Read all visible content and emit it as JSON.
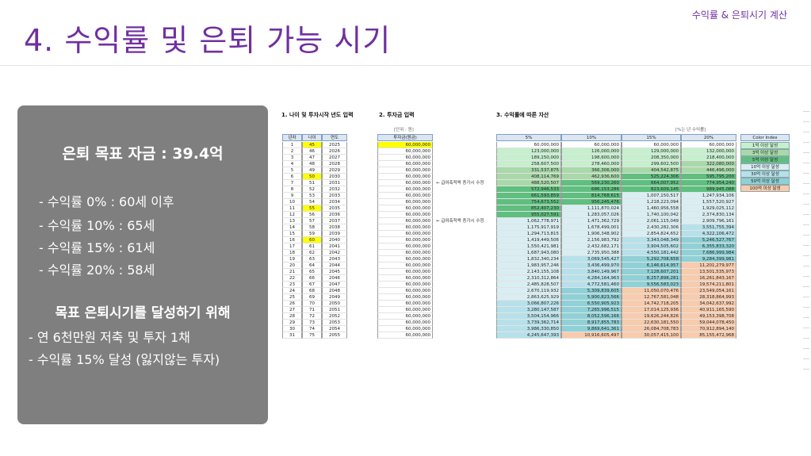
{
  "header": {
    "title": "4. 수익률 및 은퇴 가능 시기",
    "tag": "수익률 & 은퇴시기 계산"
  },
  "summary": {
    "goal": "은퇴 목표 자금 : 39.4억",
    "rates": [
      "- 수익률    0% : 60세 이후",
      "- 수익률 10% : 65세",
      "- 수익률 15% : 61세",
      "- 수익률 20% : 58세"
    ],
    "heading": "목표 은퇴시기를 달성하기 위해",
    "plans": [
      "- 연 6천만원 저축 및 투자 1채",
      "- 수익률 15% 달성 (잃지않는 투자)"
    ]
  },
  "sheet": {
    "sections": [
      "1. 나이 및 투자시작 년도 입력",
      "2. 투자금 입력",
      "3. 수익률에 따른 자산"
    ],
    "unit_left": "[단위 : 원]",
    "unit_right": "[%는 년 수익률]",
    "headers": {
      "year_no": "년차",
      "age": "나이",
      "year": "연도",
      "invest": "투자금(원금)",
      "r5": "5%",
      "r10": "10%",
      "r15": "15%",
      "r20": "20%",
      "color_index": "Color Index"
    },
    "notes": [
      "← 급여축적액 증가시 수정",
      "← 급여축적액 증가시 수정"
    ],
    "legend": [
      {
        "label": "1억 이상 달성",
        "color": "#c6efce"
      },
      {
        "label": "3억 이상 달성",
        "color": "#a9d9a9"
      },
      {
        "label": "5억 이상 달성",
        "color": "#5fbf7f"
      },
      {
        "label": "10억 이상 달성",
        "color": "#d9eef2"
      },
      {
        "label": "30억 이상 달성",
        "color": "#b7e1ea"
      },
      {
        "label": "50억 이상 달성",
        "color": "#8fd1d6"
      },
      {
        "label": "100억 이상 달성",
        "color": "#f8cbad"
      }
    ],
    "rows": [
      [
        "1",
        "45",
        "2025",
        "60,000,000",
        "60,000,000",
        "60,000,000",
        "60,000,000",
        "60,000,000"
      ],
      [
        "2",
        "46",
        "2026",
        "60,000,000",
        "123,000,000",
        "126,000,000",
        "129,000,000",
        "132,000,000"
      ],
      [
        "3",
        "47",
        "2027",
        "60,000,000",
        "189,150,000",
        "198,600,000",
        "208,350,000",
        "218,400,000"
      ],
      [
        "4",
        "48",
        "2028",
        "60,000,000",
        "258,607,500",
        "278,460,000",
        "299,602,500",
        "322,080,000"
      ],
      [
        "5",
        "49",
        "2029",
        "60,000,000",
        "331,537,875",
        "366,306,000",
        "404,542,875",
        "446,496,000"
      ],
      [
        "6",
        "50",
        "2030",
        "60,000,000",
        "408,114,769",
        "462,936,600",
        "525,224,306",
        "595,795,200"
      ],
      [
        "7",
        "51",
        "2031",
        "60,000,000",
        "488,520,507",
        "569,230,260",
        "664,007,952",
        "774,954,240"
      ],
      [
        "8",
        "52",
        "2032",
        "60,000,000",
        "572,946,533",
        "686,153,286",
        "823,609,145",
        "989,945,088"
      ],
      [
        "9",
        "53",
        "2033",
        "60,000,000",
        "661,593,859",
        "814,768,615",
        "1,007,150,517",
        "1,247,934,106"
      ],
      [
        "10",
        "54",
        "2034",
        "60,000,000",
        "754,673,552",
        "956,245,476",
        "1,218,223,094",
        "1,557,520,927"
      ],
      [
        "11",
        "55",
        "2035",
        "60,000,000",
        "852,407,230",
        "1,111,870,024",
        "1,460,956,558",
        "1,929,025,112"
      ],
      [
        "12",
        "56",
        "2036",
        "60,000,000",
        "955,027,591",
        "1,283,057,026",
        "1,740,100,042",
        "2,374,830,134"
      ],
      [
        "13",
        "57",
        "2037",
        "60,000,000",
        "1,062,778,971",
        "1,471,362,729",
        "2,061,115,049",
        "2,909,796,161"
      ],
      [
        "14",
        "58",
        "2038",
        "60,000,000",
        "1,175,917,919",
        "1,678,499,001",
        "2,430,282,306",
        "3,551,755,394"
      ],
      [
        "15",
        "59",
        "2039",
        "60,000,000",
        "1,294,713,815",
        "1,906,348,902",
        "2,854,824,652",
        "4,322,106,472"
      ],
      [
        "16",
        "60",
        "2040",
        "60,000,000",
        "1,419,449,506",
        "2,156,983,792",
        "3,343,048,349",
        "5,246,527,767"
      ],
      [
        "17",
        "61",
        "2041",
        "60,000,000",
        "1,550,421,981",
        "2,432,682,171",
        "3,904,505,602",
        "6,355,833,320"
      ],
      [
        "18",
        "62",
        "2042",
        "60,000,000",
        "1,687,943,080",
        "2,735,950,388",
        "4,550,181,442",
        "7,686,999,984"
      ],
      [
        "19",
        "63",
        "2043",
        "60,000,000",
        "1,832,340,234",
        "3,069,545,427",
        "5,292,708,658",
        "9,284,399,981"
      ],
      [
        "20",
        "64",
        "2044",
        "60,000,000",
        "1,983,957,246",
        "3,436,499,970",
        "6,146,614,957",
        "11,201,279,977"
      ],
      [
        "21",
        "65",
        "2045",
        "60,000,000",
        "2,143,155,108",
        "3,840,149,967",
        "7,128,607,201",
        "13,501,535,973"
      ],
      [
        "22",
        "66",
        "2046",
        "60,000,000",
        "2,310,312,864",
        "4,284,164,963",
        "8,257,898,281",
        "16,261,843,167"
      ],
      [
        "23",
        "67",
        "2047",
        "60,000,000",
        "2,485,828,507",
        "4,772,581,460",
        "9,556,583,023",
        "19,574,211,801"
      ],
      [
        "24",
        "68",
        "2048",
        "60,000,000",
        "2,670,119,932",
        "5,309,839,605",
        "11,050,070,476",
        "23,549,054,161"
      ],
      [
        "25",
        "69",
        "2049",
        "60,000,000",
        "2,863,625,929",
        "5,900,823,566",
        "12,767,581,048",
        "28,318,864,993"
      ],
      [
        "26",
        "70",
        "2050",
        "60,000,000",
        "3,066,807,226",
        "6,550,905,923",
        "14,742,718,205",
        "34,042,637,992"
      ],
      [
        "27",
        "71",
        "2051",
        "60,000,000",
        "3,280,147,587",
        "7,265,996,515",
        "17,014,125,936",
        "40,911,165,590"
      ],
      [
        "28",
        "72",
        "2052",
        "60,000,000",
        "3,504,154,966",
        "8,052,596,166",
        "19,626,244,826",
        "49,153,398,708"
      ],
      [
        "29",
        "73",
        "2053",
        "60,000,000",
        "3,739,362,714",
        "8,917,855,783",
        "22,630,181,550",
        "59,044,078,450"
      ],
      [
        "30",
        "74",
        "2054",
        "60,000,000",
        "3,986,330,850",
        "9,869,641,361",
        "26,084,708,783",
        "70,912,894,140"
      ],
      [
        "31",
        "75",
        "2055",
        "60,000,000",
        "4,245,647,393",
        "10,916,605,497",
        "30,057,415,100",
        "85,155,472,968"
      ]
    ]
  }
}
